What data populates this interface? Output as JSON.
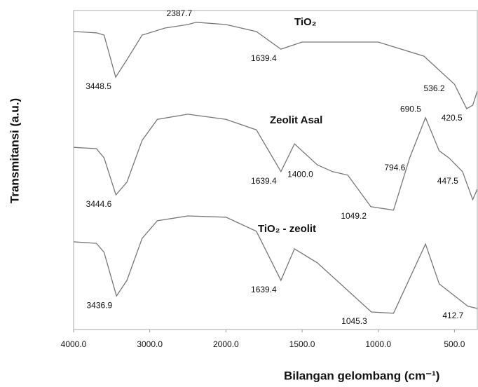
{
  "chart_data": {
    "type": "line",
    "ylabel": "Transmitansi (a.u.)",
    "xlabel": "Bilangan gelombang (cm⁻¹)",
    "xlim": [
      4000,
      350
    ],
    "xscale_break": 2000,
    "xticks": [
      {
        "value": 4000,
        "label": "4000.0"
      },
      {
        "value": 3000,
        "label": "3000.0"
      },
      {
        "value": 2000,
        "label": "2000.0"
      },
      {
        "value": 1500,
        "label": "1500.0"
      },
      {
        "value": 1000,
        "label": "1000.0"
      },
      {
        "value": 500,
        "label": "500.0"
      }
    ],
    "ylim": [
      0,
      100
    ],
    "series": [
      {
        "name": "TiO₂",
        "color": "#777777",
        "x": [
          4000,
          3700,
          3600,
          3448,
          3300,
          3100,
          2800,
          2500,
          2390,
          2000,
          1800,
          1639,
          1500,
          1000,
          700,
          500,
          420,
          380,
          350
        ],
        "values": [
          93.4,
          93,
          92.3,
          79.1,
          84.6,
          92.3,
          94.5,
          95.6,
          96.3,
          95.6,
          93.4,
          87.9,
          90.1,
          90.1,
          85.7,
          76.9,
          69.2,
          70.3,
          74.7
        ],
        "peak_labels": [
          "3448.5",
          "2387.7",
          "1639.4",
          "420.5",
          "536.2"
        ]
      },
      {
        "name": "Zeolit Asal",
        "color": "#777777",
        "x": [
          4000,
          3700,
          3600,
          3444,
          3300,
          3100,
          2900,
          2500,
          2000,
          1800,
          1639,
          1550,
          1400,
          1300,
          1200,
          1049,
          900,
          794,
          690,
          600,
          536,
          447,
          380,
          350
        ],
        "values": [
          57.1,
          56.7,
          53.8,
          42.2,
          46.2,
          59.3,
          65.9,
          67.5,
          65.9,
          62.6,
          49.5,
          58.2,
          51.6,
          49.5,
          48.4,
          38.5,
          37.4,
          53.8,
          66.4,
          56.0,
          53.8,
          49.5,
          40.7,
          44.0
        ],
        "peak_labels": [
          "3444.6",
          "1639.4",
          "1400.0",
          "1049.2",
          "794.6",
          "690.5",
          "447.5"
        ]
      },
      {
        "name": "TiO₂ - zeolit",
        "color": "#777777",
        "x": [
          4000,
          3700,
          3600,
          3437,
          3300,
          3100,
          2900,
          2500,
          2000,
          1800,
          1639,
          1550,
          1400,
          1045,
          900,
          690,
          600,
          412,
          350
        ],
        "values": [
          27.5,
          27.0,
          24.2,
          10.5,
          15.4,
          28.6,
          34.1,
          35.6,
          35.2,
          30.8,
          15.4,
          25.3,
          20.9,
          5.5,
          5.1,
          26.8,
          14.3,
          7.3,
          6.6
        ],
        "peak_labels": [
          "3436.9",
          "1639.4",
          "1045.3",
          "412.7"
        ]
      }
    ]
  }
}
